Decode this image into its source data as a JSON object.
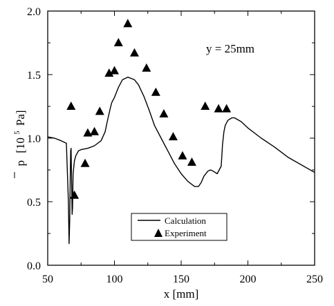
{
  "chart_data": {
    "type": "line",
    "annotation": "y = 25mm",
    "xlabel": "x [mm]",
    "ylabel": {
      "symbol": "p",
      "units_prefix": "[10",
      "exponent": "5",
      "units_suffix": "Pa]"
    },
    "xlim": [
      50,
      250
    ],
    "ylim": [
      0.0,
      2.0
    ],
    "xticks": [
      50,
      100,
      150,
      200,
      250
    ],
    "xtick_labels": [
      "50",
      "100",
      "150",
      "200",
      "250"
    ],
    "yticks": [
      0.0,
      0.5,
      1.0,
      1.5,
      2.0
    ],
    "ytick_labels": [
      "0.0",
      "0.5",
      "1.0",
      "1.5",
      "2.0"
    ],
    "grid": false,
    "legend": {
      "position": "bottom-center",
      "entries": [
        {
          "label": "Calculation",
          "marker": "line"
        },
        {
          "label": "Experiment",
          "marker": "triangle"
        }
      ]
    },
    "series": [
      {
        "name": "Calculation",
        "style": "line",
        "x": [
          50,
          55,
          60,
          64,
          65.5,
          66,
          66.5,
          66.9,
          67.2,
          67.5,
          68,
          68.3,
          68.6,
          69,
          70,
          71,
          72,
          73,
          75,
          80,
          85,
          90,
          93,
          95,
          97,
          98,
          100,
          103,
          106,
          110,
          115,
          118,
          122,
          126,
          130,
          135,
          140,
          145,
          150,
          155,
          160,
          163,
          165,
          167,
          170,
          172,
          174,
          177,
          180,
          181,
          182,
          183,
          185,
          188,
          190,
          195,
          200,
          210,
          220,
          230,
          240,
          250
        ],
        "y": [
          1.01,
          1.0,
          0.98,
          0.96,
          0.5,
          0.17,
          0.35,
          0.7,
          0.9,
          0.92,
          0.6,
          0.4,
          0.45,
          0.72,
          0.82,
          0.86,
          0.88,
          0.9,
          0.91,
          0.92,
          0.94,
          0.98,
          1.05,
          1.15,
          1.24,
          1.28,
          1.32,
          1.4,
          1.46,
          1.48,
          1.46,
          1.42,
          1.33,
          1.22,
          1.1,
          1.0,
          0.9,
          0.8,
          0.72,
          0.66,
          0.62,
          0.62,
          0.65,
          0.7,
          0.74,
          0.75,
          0.74,
          0.72,
          0.78,
          0.95,
          1.05,
          1.1,
          1.14,
          1.16,
          1.16,
          1.13,
          1.08,
          1.0,
          0.93,
          0.85,
          0.79,
          0.73
        ]
      },
      {
        "name": "Experiment",
        "style": "triangle",
        "x": [
          67.5,
          70,
          78,
          80,
          85,
          89,
          96,
          100,
          103,
          110,
          115,
          124,
          131,
          137,
          144,
          151,
          158,
          168,
          178,
          184
        ],
        "y": [
          1.25,
          0.55,
          0.8,
          1.04,
          1.05,
          1.21,
          1.51,
          1.53,
          1.75,
          1.9,
          1.67,
          1.55,
          1.36,
          1.19,
          1.01,
          0.86,
          0.81,
          1.25,
          1.23,
          1.23
        ]
      }
    ]
  }
}
